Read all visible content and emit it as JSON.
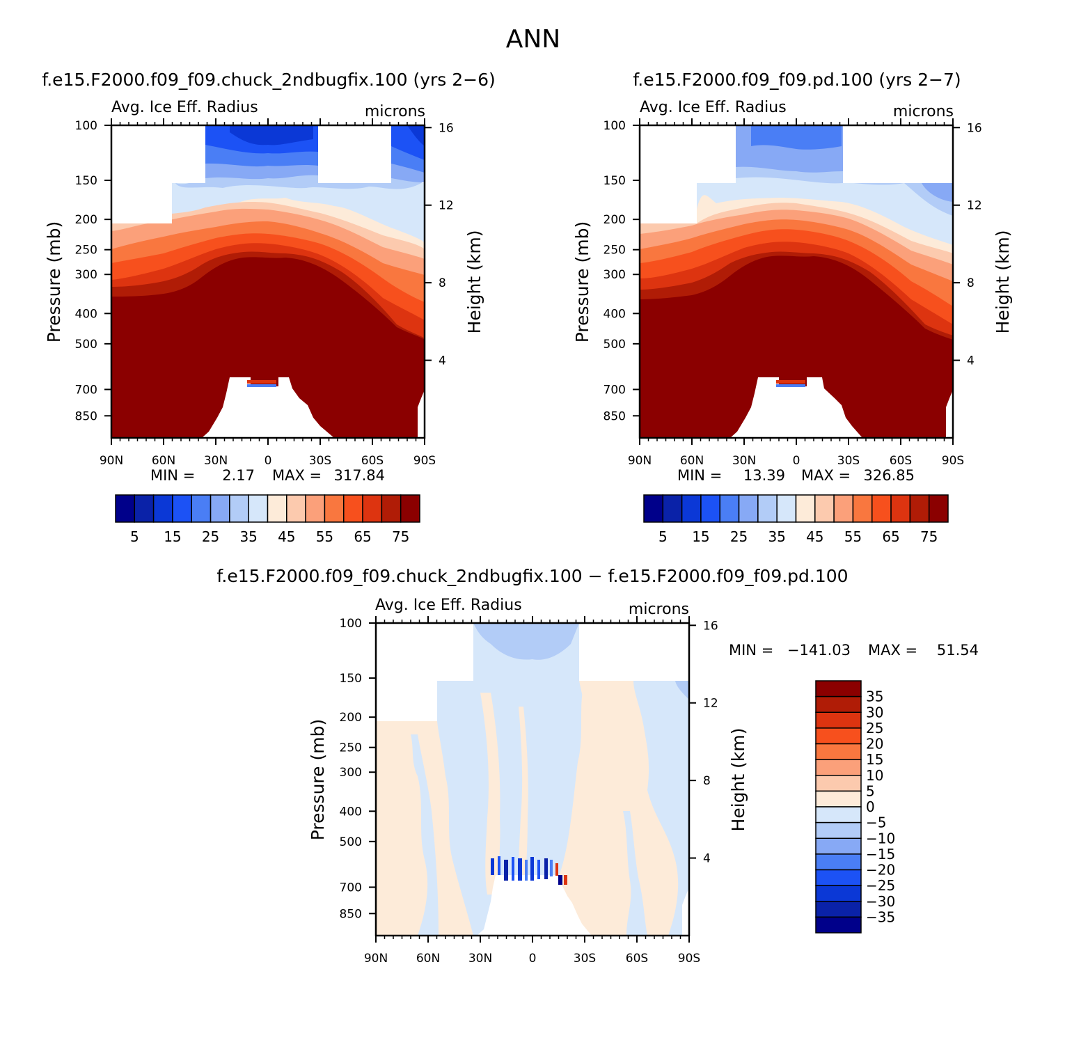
{
  "figure": {
    "title": "ANN"
  },
  "colors": {
    "abs_levels": [
      "#00008a",
      "#0a22a8",
      "#0b38d6",
      "#1c52f5",
      "#4a7ef5",
      "#87a9f5",
      "#b2ccf7",
      "#d6e7fa",
      "#fdebd9",
      "#fccaae",
      "#fba07a",
      "#f9773f",
      "#f7501d",
      "#dd3410",
      "#b01c06",
      "#8b0000"
    ],
    "diff_levels": [
      "#00008a",
      "#0a22a8",
      "#0b38d6",
      "#1c52f5",
      "#4a7ef5",
      "#87a9f5",
      "#b2ccf7",
      "#d6e7fa",
      "#fdebd9",
      "#fccaae",
      "#fba07a",
      "#f9773f",
      "#f7501d",
      "#dd3410",
      "#b01c06",
      "#8b0000"
    ]
  },
  "chart_data": [
    {
      "type": "heatmap",
      "id": "panel1",
      "title": "f.e15.F2000.f09_f09.chuck_2ndbugfix.100 (yrs 2−6)",
      "left_label": "Avg. Ice Eff. Radius",
      "right_label": "microns",
      "ylabel": "Pressure (mb)",
      "y2label": "Height (km)",
      "x_ticks": [
        "90N",
        "60N",
        "30N",
        "0",
        "30S",
        "60S",
        "90S"
      ],
      "y_ticks": [
        "100",
        "150",
        "200",
        "250",
        "300",
        "400",
        "500",
        "700",
        "850"
      ],
      "y_tick_values": [
        100,
        150,
        200,
        250,
        300,
        400,
        500,
        700,
        850
      ],
      "y2_ticks": [
        "16",
        "12",
        "8",
        "4"
      ],
      "y2_tick_values": [
        16,
        12,
        8,
        4
      ],
      "xlim": [
        90,
        -90
      ],
      "ylim": [
        100,
        1000
      ],
      "min_label": "MIN =",
      "min_value": "2.17",
      "max_label": "MAX =",
      "max_value": "317.84",
      "colorbar_labels": [
        "5",
        "15",
        "25",
        "35",
        "45",
        "55",
        "65",
        "75"
      ],
      "levels": [
        5,
        10,
        15,
        20,
        25,
        30,
        35,
        40,
        45,
        50,
        55,
        60,
        65,
        70,
        75
      ],
      "value_range": [
        2.17,
        317.84
      ]
    },
    {
      "type": "heatmap",
      "id": "panel2",
      "title": "f.e15.F2000.f09_f09.pd.100 (yrs 2−7)",
      "left_label": "Avg. Ice Eff. Radius",
      "right_label": "microns",
      "ylabel": "Pressure (mb)",
      "y2label": "Height (km)",
      "x_ticks": [
        "90N",
        "60N",
        "30N",
        "0",
        "30S",
        "60S",
        "90S"
      ],
      "y_ticks": [
        "100",
        "150",
        "200",
        "250",
        "300",
        "400",
        "500",
        "700",
        "850"
      ],
      "y_tick_values": [
        100,
        150,
        200,
        250,
        300,
        400,
        500,
        700,
        850
      ],
      "y2_ticks": [
        "16",
        "12",
        "8",
        "4"
      ],
      "y2_tick_values": [
        16,
        12,
        8,
        4
      ],
      "xlim": [
        90,
        -90
      ],
      "ylim": [
        100,
        1000
      ],
      "min_label": "MIN =",
      "min_value": "13.39",
      "max_label": "MAX =",
      "max_value": "326.85",
      "colorbar_labels": [
        "5",
        "15",
        "25",
        "35",
        "45",
        "55",
        "65",
        "75"
      ],
      "levels": [
        5,
        10,
        15,
        20,
        25,
        30,
        35,
        40,
        45,
        50,
        55,
        60,
        65,
        70,
        75
      ],
      "value_range": [
        13.39,
        326.85
      ]
    },
    {
      "type": "heatmap",
      "id": "panel3",
      "title": "f.e15.F2000.f09_f09.chuck_2ndbugfix.100 − f.e15.F2000.f09_f09.pd.100",
      "left_label": "Avg. Ice Eff. Radius",
      "right_label": "microns",
      "ylabel": "Pressure (mb)",
      "y2label": "Height (km)",
      "x_ticks": [
        "90N",
        "60N",
        "30N",
        "0",
        "30S",
        "60S",
        "90S"
      ],
      "y_ticks": [
        "100",
        "150",
        "200",
        "250",
        "300",
        "400",
        "500",
        "700",
        "850"
      ],
      "y_tick_values": [
        100,
        150,
        200,
        250,
        300,
        400,
        500,
        700,
        850
      ],
      "y2_ticks": [
        "16",
        "12",
        "8",
        "4"
      ],
      "y2_tick_values": [
        16,
        12,
        8,
        4
      ],
      "xlim": [
        90,
        -90
      ],
      "ylim": [
        100,
        1000
      ],
      "min_label": "MIN =",
      "min_value": "−141.03",
      "max_label": "MAX =",
      "max_value": "51.54",
      "colorbar_labels": [
        "35",
        "30",
        "25",
        "20",
        "15",
        "10",
        "5",
        "0",
        "−5",
        "−10",
        "−15",
        "−20",
        "−25",
        "−30",
        "−35"
      ],
      "levels": [
        -35,
        -30,
        -25,
        -20,
        -15,
        -10,
        -5,
        0,
        5,
        10,
        15,
        20,
        25,
        30,
        35
      ],
      "value_range": [
        -141.03,
        51.54
      ]
    }
  ]
}
